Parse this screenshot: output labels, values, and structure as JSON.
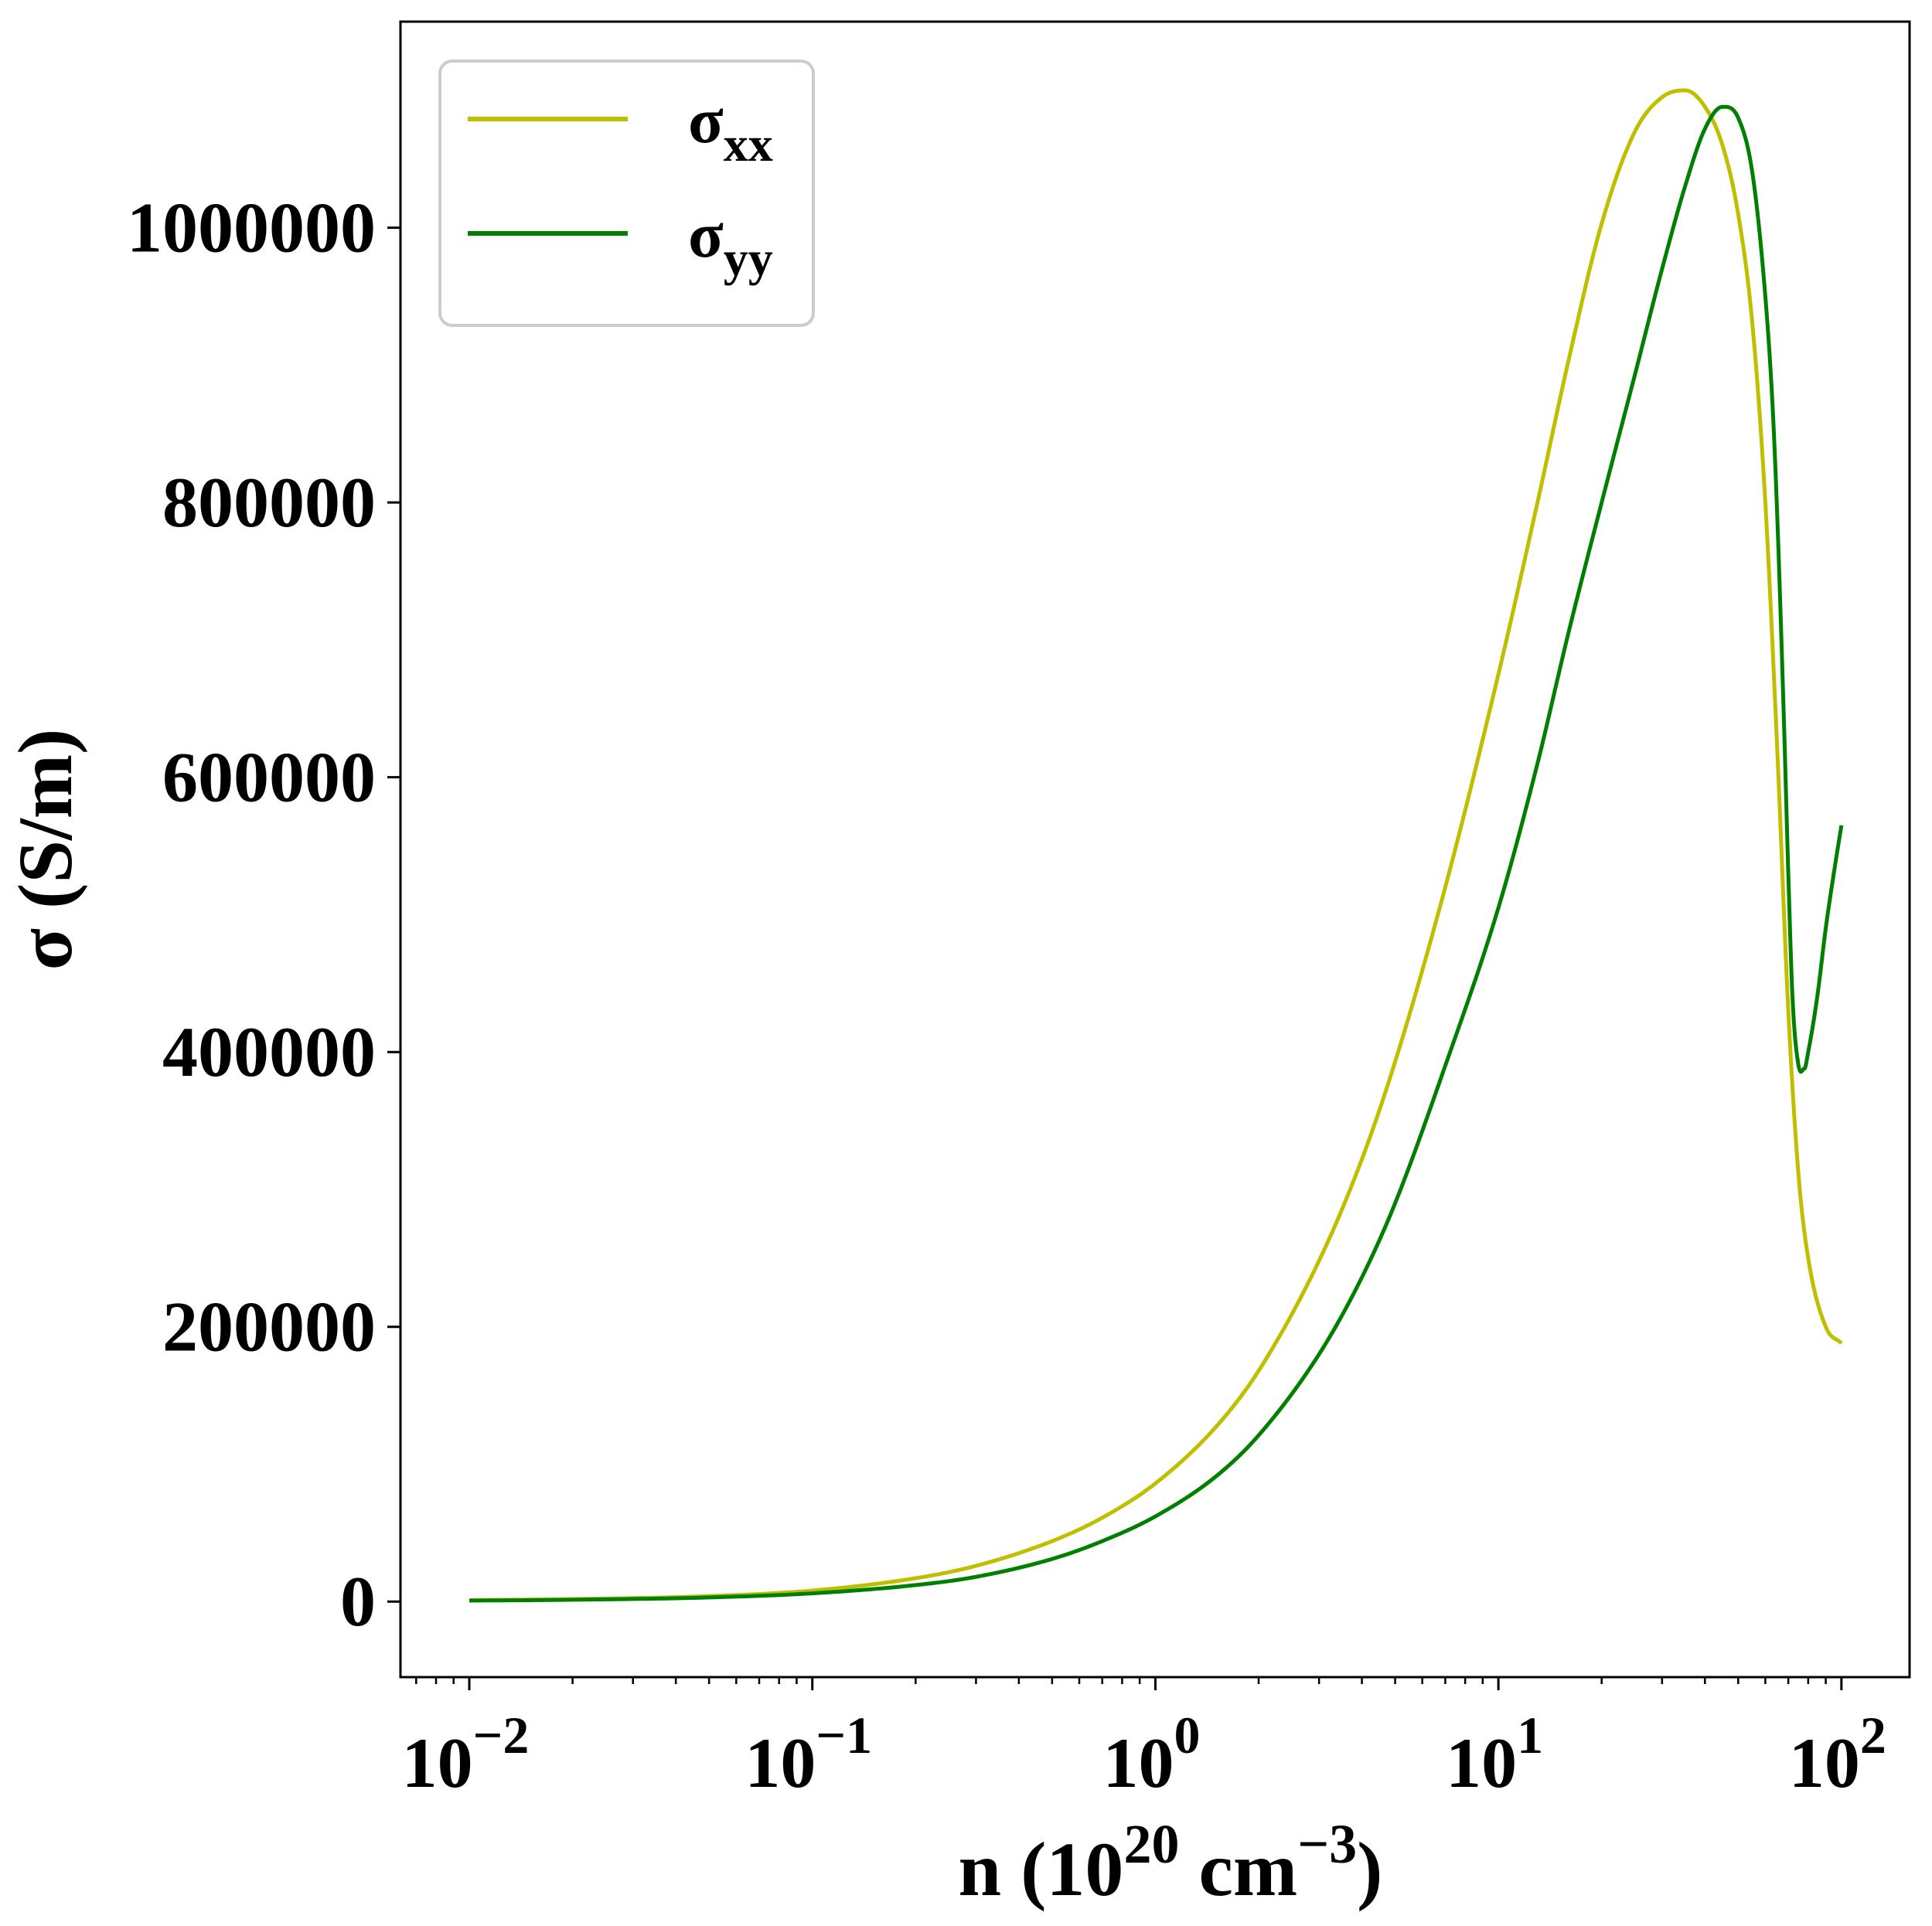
{
  "chart_data": {
    "type": "line",
    "title": "",
    "xlabel": "n (10^20 cm^-3)",
    "xlabel_parts": {
      "base": "n (10",
      "exp1": "20",
      "mid": " cm",
      "exp2": "−3",
      "end": ")"
    },
    "ylabel": "σ (S/m)",
    "xscale": "log",
    "xlim": [
      0.0063,
      158
    ],
    "ylim": [
      -55000,
      1150000
    ],
    "grid": false,
    "legend_position": "top-left",
    "x_ticks": [
      {
        "value": 0.01,
        "base": "10",
        "exp": "−2"
      },
      {
        "value": 0.1,
        "base": "10",
        "exp": "−1"
      },
      {
        "value": 1,
        "base": "10",
        "exp": "0"
      },
      {
        "value": 10,
        "base": "10",
        "exp": "1"
      },
      {
        "value": 100,
        "base": "10",
        "exp": "2"
      }
    ],
    "y_ticks": [
      {
        "value": 0,
        "label": "0"
      },
      {
        "value": 200000,
        "label": "200000"
      },
      {
        "value": 400000,
        "label": "400000"
      },
      {
        "value": 600000,
        "label": "600000"
      },
      {
        "value": 800000,
        "label": "800000"
      },
      {
        "value": 1000000,
        "label": "1000000"
      }
    ],
    "series": [
      {
        "name": "σxx",
        "name_base": "σ",
        "name_sub": "xx",
        "color": "#bfbf00",
        "x": [
          0.01,
          0.02,
          0.05,
          0.1,
          0.2,
          0.3,
          0.5,
          0.7,
          1.0,
          1.5,
          2.0,
          3.0,
          4.0,
          5.0,
          7.0,
          10,
          13,
          16,
          20,
          25,
          30,
          35,
          40,
          45,
          50,
          55,
          60,
          65,
          70,
          75,
          80,
          90,
          100
        ],
        "y": [
          1000,
          1800,
          4000,
          8000,
          17000,
          26000,
          44000,
          61000,
          86000,
          127000,
          168000,
          248000,
          322000,
          393000,
          520000,
          675000,
          800000,
          903000,
          1003000,
          1070000,
          1095000,
          1100000,
          1088000,
          1060000,
          1010000,
          930000,
          800000,
          620000,
          430000,
          310000,
          250000,
          200000,
          188000
        ]
      },
      {
        "name": "σyy",
        "name_base": "σ",
        "name_sub": "yy",
        "color": "#007f00",
        "x": [
          0.01,
          0.02,
          0.05,
          0.1,
          0.2,
          0.3,
          0.5,
          0.7,
          1.0,
          1.5,
          2.0,
          3.0,
          4.0,
          5.0,
          7.0,
          10,
          13,
          16,
          20,
          25,
          30,
          35,
          40,
          45,
          50,
          55,
          60,
          63,
          65,
          68,
          70,
          72,
          75,
          78,
          80,
          85,
          90,
          95,
          100
        ],
        "y": [
          700,
          1300,
          3000,
          6000,
          12000,
          18000,
          31000,
          44000,
          62000,
          91000,
          121000,
          180000,
          236000,
          290000,
          390000,
          505000,
          610000,
          705000,
          800000,
          893000,
          970000,
          1030000,
          1072000,
          1088000,
          1080000,
          1040000,
          950000,
          870000,
          790000,
          640000,
          530000,
          440000,
          390000,
          388000,
          400000,
          440000,
          490000,
          530000,
          565000
        ]
      }
    ]
  }
}
